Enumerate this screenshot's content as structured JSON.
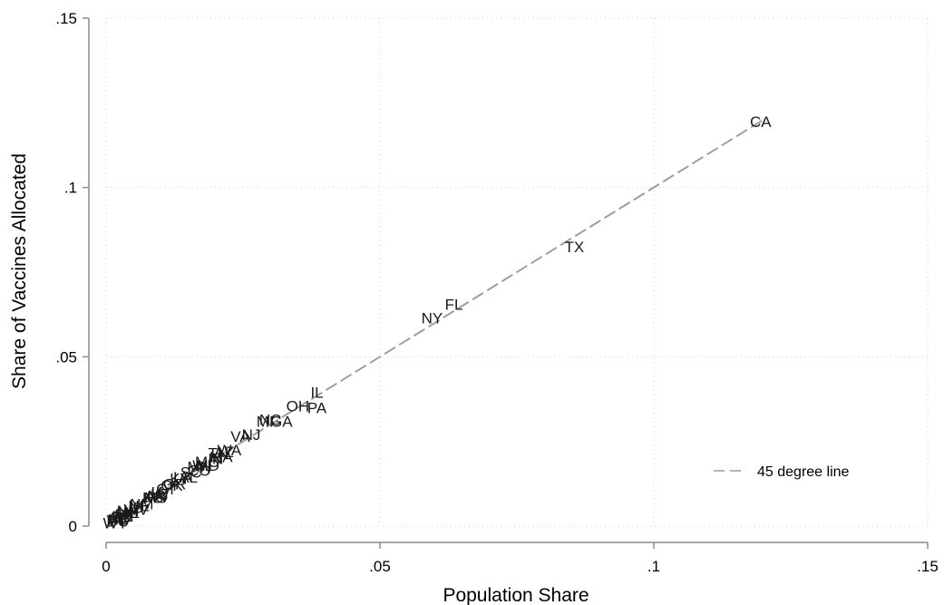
{
  "chart_data": {
    "type": "scatter",
    "xlabel": "Population Share",
    "ylabel": "Share of Vaccines Allocated",
    "xlim": [
      0,
      0.15
    ],
    "ylim": [
      0,
      0.15
    ],
    "x_ticks": [
      {
        "value": 0,
        "label": "0"
      },
      {
        "value": 0.05,
        "label": ".05"
      },
      {
        "value": 0.1,
        "label": ".1"
      },
      {
        "value": 0.15,
        "label": ".15"
      }
    ],
    "y_ticks": [
      {
        "value": 0,
        "label": "0"
      },
      {
        "value": 0.05,
        "label": ".05"
      },
      {
        "value": 0.1,
        "label": ".1"
      },
      {
        "value": 0.15,
        "label": ".15"
      }
    ],
    "grid": "dotted",
    "legend_position": "bottom-right",
    "reference_line": {
      "label": "45 degree line",
      "from": [
        0,
        0
      ],
      "to": [
        0.12,
        0.12
      ],
      "color": "#9e9e9e"
    },
    "points": [
      {
        "label": "CA",
        "x": 0.1195,
        "y": 0.1195
      },
      {
        "label": "TX",
        "x": 0.0855,
        "y": 0.0825
      },
      {
        "label": "FL",
        "x": 0.0635,
        "y": 0.0655
      },
      {
        "label": "NY",
        "x": 0.0595,
        "y": 0.0615
      },
      {
        "label": "IL",
        "x": 0.0385,
        "y": 0.0395
      },
      {
        "label": "PA",
        "x": 0.0385,
        "y": 0.035
      },
      {
        "label": "OH",
        "x": 0.035,
        "y": 0.0355
      },
      {
        "label": "GA",
        "x": 0.032,
        "y": 0.031
      },
      {
        "label": "NC",
        "x": 0.03,
        "y": 0.0315
      },
      {
        "label": "MI",
        "x": 0.029,
        "y": 0.031
      },
      {
        "label": "NJ",
        "x": 0.0265,
        "y": 0.027
      },
      {
        "label": "VA",
        "x": 0.0245,
        "y": 0.0265
      },
      {
        "label": "WA",
        "x": 0.0225,
        "y": 0.0225
      },
      {
        "label": "AZ",
        "x": 0.0215,
        "y": 0.022
      },
      {
        "label": "MA",
        "x": 0.021,
        "y": 0.0205
      },
      {
        "label": "TN",
        "x": 0.0205,
        "y": 0.0215
      },
      {
        "label": "IN",
        "x": 0.02,
        "y": 0.02
      },
      {
        "label": "MO",
        "x": 0.0185,
        "y": 0.019
      },
      {
        "label": "MD",
        "x": 0.0185,
        "y": 0.018
      },
      {
        "label": "WI",
        "x": 0.0175,
        "y": 0.018
      },
      {
        "label": "CO",
        "x": 0.017,
        "y": 0.0165
      },
      {
        "label": "MN",
        "x": 0.017,
        "y": 0.0175
      },
      {
        "label": "SC",
        "x": 0.0155,
        "y": 0.016
      },
      {
        "label": "AL",
        "x": 0.015,
        "y": 0.0145
      },
      {
        "label": "LA",
        "x": 0.014,
        "y": 0.0145
      },
      {
        "label": "KY",
        "x": 0.0135,
        "y": 0.014
      },
      {
        "label": "OR",
        "x": 0.0125,
        "y": 0.0125
      },
      {
        "label": "OK",
        "x": 0.012,
        "y": 0.012
      },
      {
        "label": "CT",
        "x": 0.011,
        "y": 0.011
      },
      {
        "label": "UT",
        "x": 0.01,
        "y": 0.0095
      },
      {
        "label": "IA",
        "x": 0.0095,
        "y": 0.01
      },
      {
        "label": "NV",
        "x": 0.0095,
        "y": 0.009
      },
      {
        "label": "AR",
        "x": 0.009,
        "y": 0.009
      },
      {
        "label": "MS",
        "x": 0.009,
        "y": 0.0085
      },
      {
        "label": "KS",
        "x": 0.0085,
        "y": 0.0085
      },
      {
        "label": "NM",
        "x": 0.0065,
        "y": 0.0065
      },
      {
        "label": "NE",
        "x": 0.006,
        "y": 0.006
      },
      {
        "label": "WV",
        "x": 0.0055,
        "y": 0.005
      },
      {
        "label": "ID",
        "x": 0.0055,
        "y": 0.0055
      },
      {
        "label": "HI",
        "x": 0.0045,
        "y": 0.004
      },
      {
        "label": "NH",
        "x": 0.004,
        "y": 0.0045
      },
      {
        "label": "ME",
        "x": 0.004,
        "y": 0.004
      },
      {
        "label": "MT",
        "x": 0.0035,
        "y": 0.003
      },
      {
        "label": "RI",
        "x": 0.003,
        "y": 0.0035
      },
      {
        "label": "DE",
        "x": 0.003,
        "y": 0.003
      },
      {
        "label": "SD",
        "x": 0.0027,
        "y": 0.0025
      },
      {
        "label": "ND",
        "x": 0.0023,
        "y": 0.002
      },
      {
        "label": "AK",
        "x": 0.0022,
        "y": 0.0025
      },
      {
        "label": "DC",
        "x": 0.0021,
        "y": 0.0015
      },
      {
        "label": "VT",
        "x": 0.0019,
        "y": 0.0018
      },
      {
        "label": "WY",
        "x": 0.0017,
        "y": 0.001
      }
    ]
  }
}
